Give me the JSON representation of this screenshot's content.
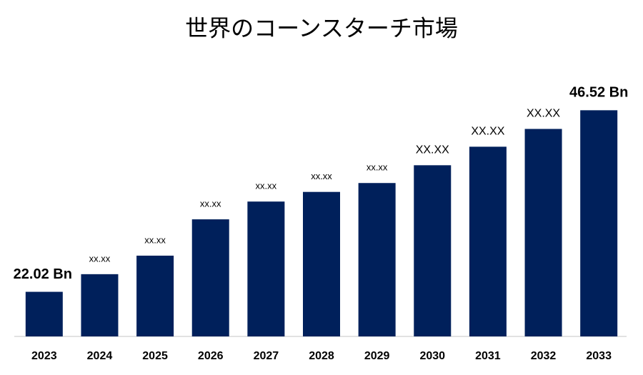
{
  "chart_data": {
    "type": "bar",
    "title": "世界のコーンスターチ市場",
    "categories": [
      "2023",
      "2024",
      "2025",
      "2026",
      "2027",
      "2028",
      "2029",
      "2030",
      "2031",
      "2032",
      "2033"
    ],
    "values": [
      22.02,
      24.4,
      26.9,
      31.8,
      34.2,
      35.5,
      36.7,
      39.1,
      41.6,
      44.0,
      46.52
    ],
    "value_labels": [
      "22.02 Bn",
      "xx.xx",
      "xx.xx",
      "xx.xx",
      "xx.xx",
      "xx.xx",
      "xx.xx",
      "XX.XX",
      "XX.XX",
      "XX.XX",
      "46.52 Bn"
    ],
    "color": "#00205b",
    "ylim": [
      16,
      48
    ]
  }
}
